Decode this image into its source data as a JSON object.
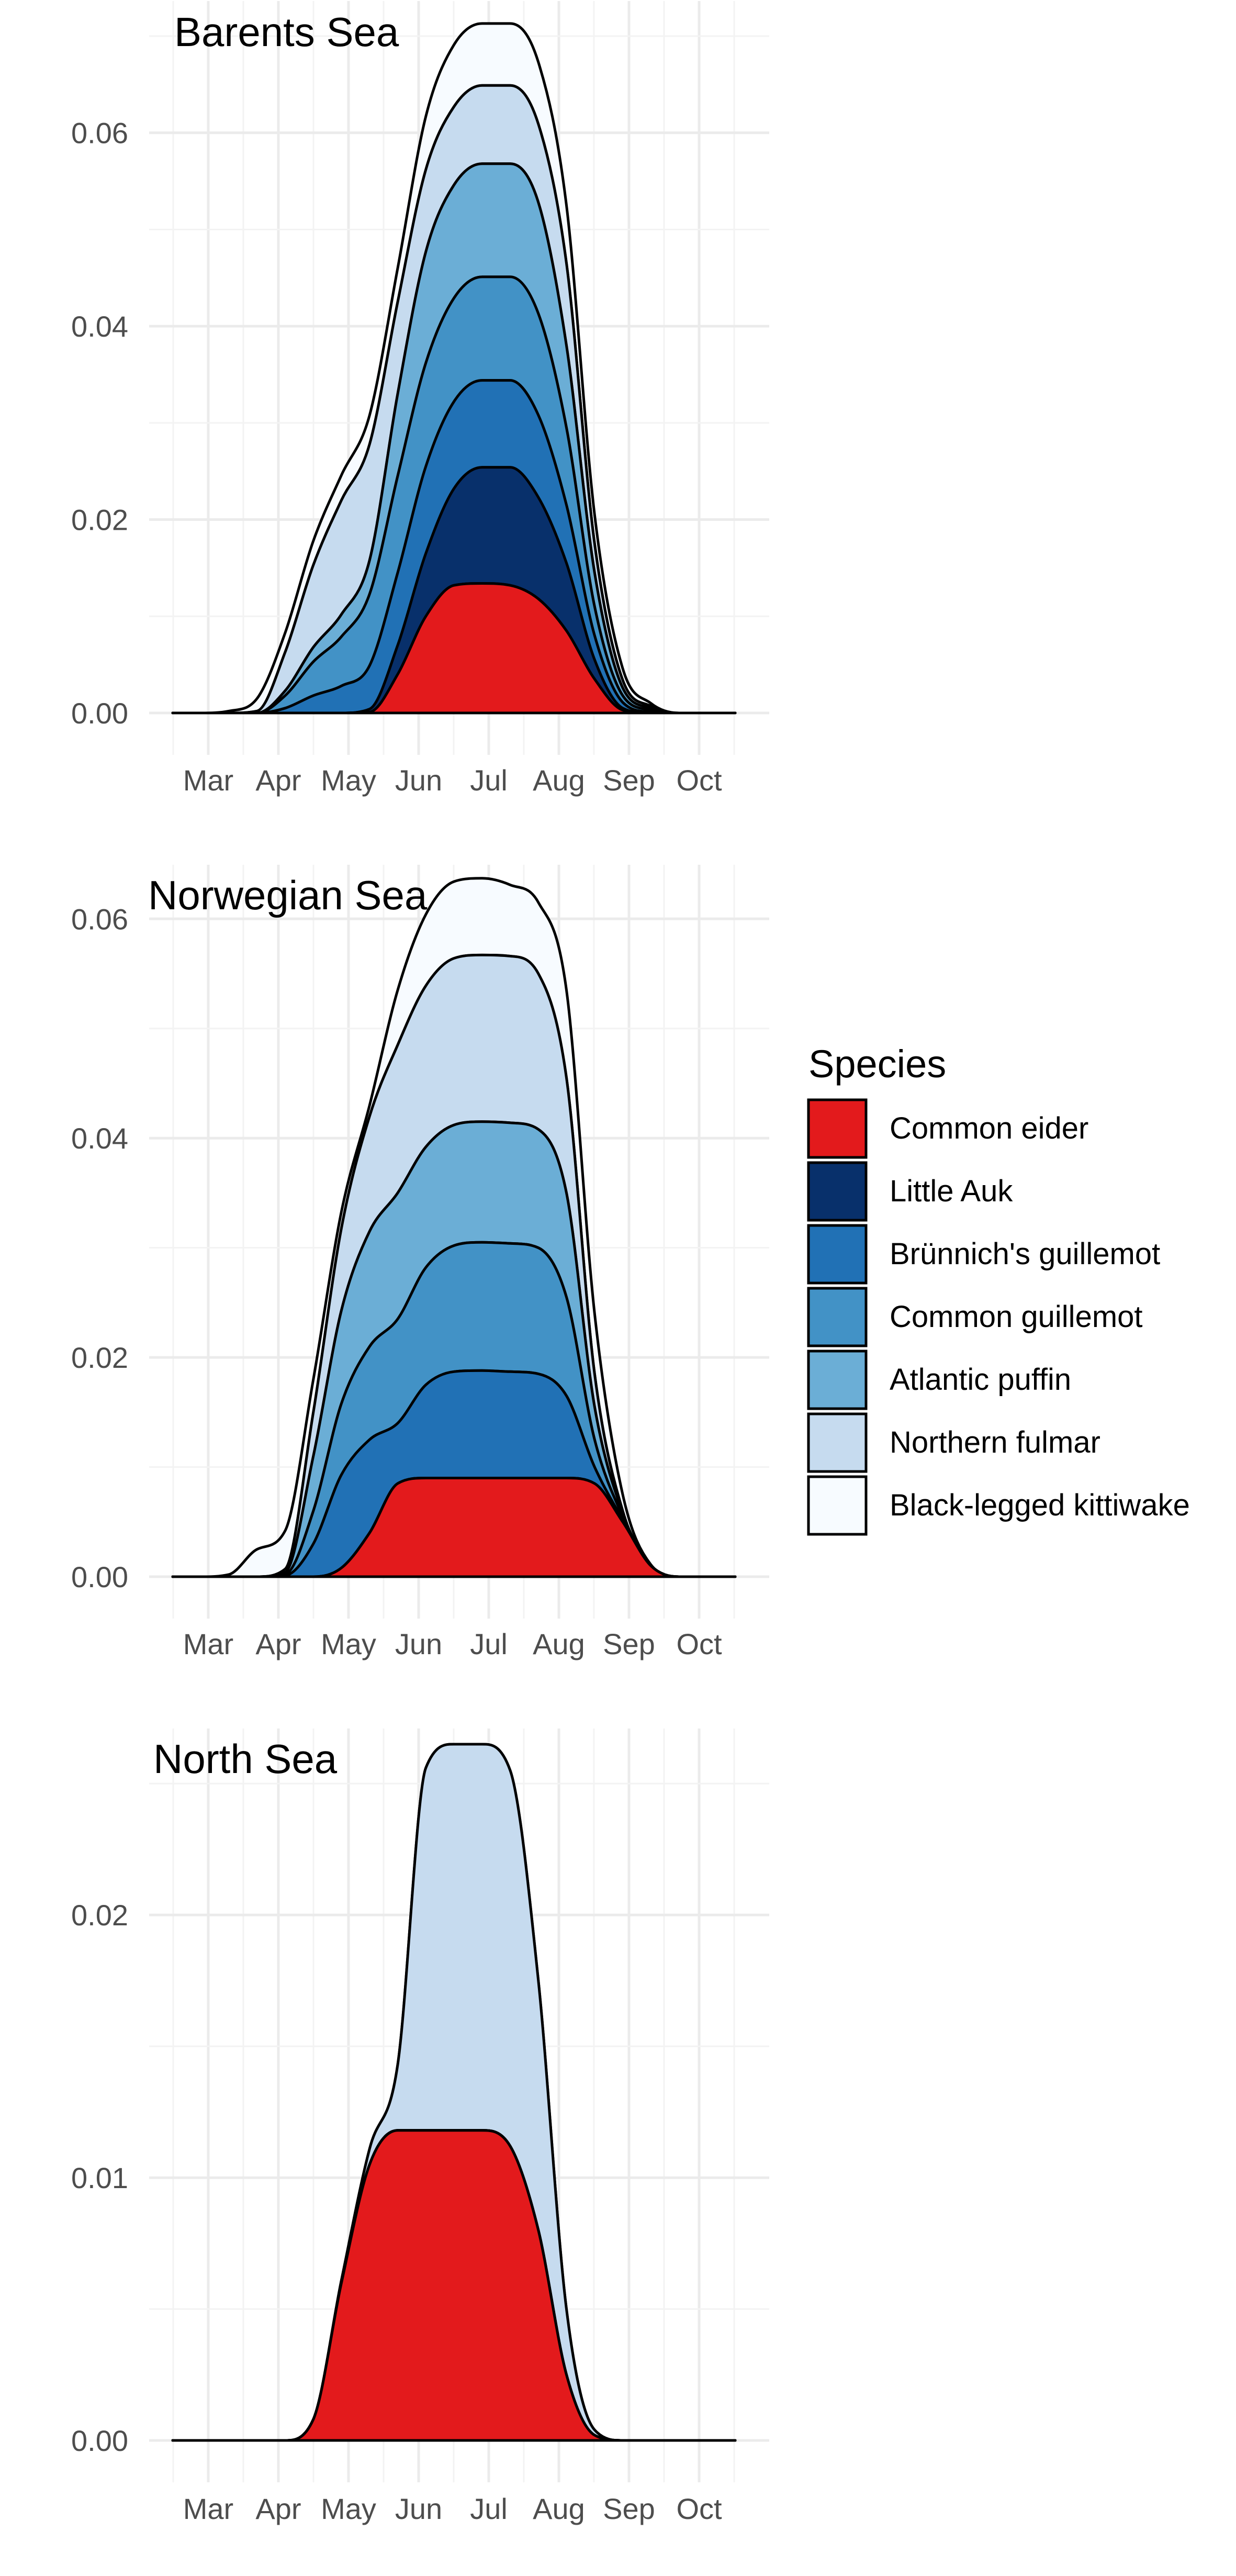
{
  "chart_data": [
    {
      "type": "area",
      "stacked": true,
      "title": "Barents Sea",
      "x_tick_labels": [
        "Mar",
        "Apr",
        "May",
        "Jun",
        "Jul",
        "Aug",
        "Sep",
        "Oct"
      ],
      "y_tick_labels": [
        "0.00",
        "0.02",
        "0.04",
        "0.06"
      ],
      "ylim": [
        0,
        0.072
      ],
      "series": [
        {
          "name": "Common eider",
          "color": "#e31a1c",
          "values": [
            0,
            0,
            0,
            0,
            0,
            0,
            0,
            0.0001,
            0.004,
            0.01,
            0.0132,
            0.0134,
            0.0132,
            0.0118,
            0.0085,
            0.0035,
            0.0003,
            0,
            0,
            0,
            0
          ]
        },
        {
          "name": "Little Auk",
          "color": "#08306b",
          "values": [
            0,
            0,
            0,
            0,
            0,
            0,
            0,
            0.0003,
            0.003,
            0.0065,
            0.01,
            0.012,
            0.0122,
            0.0105,
            0.007,
            0.002,
            0.0002,
            0,
            0,
            0,
            0
          ]
        },
        {
          "name": "Brünnich's guillemot",
          "color": "#2171b5",
          "values": [
            0,
            0,
            0,
            0,
            0.0005,
            0.0018,
            0.0028,
            0.0045,
            0.0075,
            0.009,
            0.009,
            0.009,
            0.009,
            0.0085,
            0.006,
            0.0025,
            0.0006,
            0.0001,
            0,
            0,
            0
          ]
        },
        {
          "name": "Common guillemot",
          "color": "#4292c6",
          "values": [
            0,
            0,
            0,
            0,
            0.0013,
            0.0035,
            0.0051,
            0.0074,
            0.01,
            0.0107,
            0.0107,
            0.0107,
            0.0107,
            0.0105,
            0.008,
            0.003,
            0.0007,
            0.0002,
            0,
            0,
            0
          ]
        },
        {
          "name": "Atlantic puffin",
          "color": "#6baed6",
          "values": [
            0,
            0,
            0,
            0,
            0.0005,
            0.0015,
            0.0023,
            0.0035,
            0.0085,
            0.0115,
            0.0117,
            0.0117,
            0.0117,
            0.0115,
            0.0085,
            0.0035,
            0.0008,
            0.0002,
            0,
            0,
            0
          ]
        },
        {
          "name": "Northern fulmar",
          "color": "#c6dbef",
          "values": [
            0,
            0,
            0,
            0.0002,
            0.004,
            0.0085,
            0.0118,
            0.012,
            0.0095,
            0.0085,
            0.0081,
            0.0081,
            0.0081,
            0.0081,
            0.0085,
            0.003,
            0.0008,
            0.0002,
            0,
            0,
            0
          ]
        },
        {
          "name": "Black-legged kittiwake",
          "color": "#f7fbff",
          "values": [
            0,
            0,
            0.0002,
            0.0013,
            0.002,
            0.0025,
            0.0026,
            0.003,
            0.0035,
            0.0055,
            0.0064,
            0.0064,
            0.0064,
            0.0064,
            0.006,
            0.003,
            0.0012,
            0.0003,
            0,
            0,
            0
          ]
        }
      ]
    },
    {
      "type": "area",
      "stacked": true,
      "title": "Norwegian Sea",
      "x_tick_labels": [
        "Mar",
        "Apr",
        "May",
        "Jun",
        "Jul",
        "Aug",
        "Sep",
        "Oct"
      ],
      "y_tick_labels": [
        "0.00",
        "0.02",
        "0.04",
        "0.06"
      ],
      "ylim": [
        0,
        0.0635
      ],
      "series": [
        {
          "name": "Common eider",
          "color": "#e31a1c",
          "values": [
            0,
            0,
            0,
            0,
            0,
            0,
            0.0008,
            0.004,
            0.0085,
            0.009,
            0.009,
            0.009,
            0.009,
            0.009,
            0.009,
            0.0085,
            0.005,
            0.001,
            0,
            0,
            0
          ]
        },
        {
          "name": "Little Auk",
          "color": "#08306b",
          "values": [
            0,
            0,
            0,
            0,
            0,
            0,
            0,
            0,
            0,
            0,
            0,
            0,
            0,
            0,
            0,
            0,
            0,
            0,
            0,
            0,
            0
          ]
        },
        {
          "name": "Brünnich's guillemot",
          "color": "#2171b5",
          "values": [
            0,
            0,
            0,
            0,
            0.0001,
            0.003,
            0.0085,
            0.0085,
            0.0055,
            0.0085,
            0.0097,
            0.0098,
            0.0097,
            0.0095,
            0.0075,
            0.0015,
            0.0002,
            0,
            0,
            0,
            0
          ]
        },
        {
          "name": "Common guillemot",
          "color": "#4292c6",
          "values": [
            0,
            0,
            0,
            0,
            0.0001,
            0.003,
            0.0065,
            0.0085,
            0.0095,
            0.0107,
            0.0115,
            0.0117,
            0.0117,
            0.0115,
            0.009,
            0.0025,
            0.0003,
            0,
            0,
            0,
            0
          ]
        },
        {
          "name": "Atlantic puffin",
          "color": "#6baed6",
          "values": [
            0,
            0,
            0,
            0,
            0.0002,
            0.005,
            0.0085,
            0.0105,
            0.0115,
            0.011,
            0.011,
            0.011,
            0.011,
            0.0108,
            0.0095,
            0.003,
            0.0003,
            0,
            0,
            0,
            0
          ]
        },
        {
          "name": "Northern fulmar",
          "color": "#c6dbef",
          "values": [
            0,
            0,
            0,
            0,
            0.0003,
            0.004,
            0.0075,
            0.0105,
            0.0135,
            0.0147,
            0.0152,
            0.0152,
            0.0152,
            0.0142,
            0.0105,
            0.003,
            0.0002,
            0,
            0,
            0,
            0
          ]
        },
        {
          "name": "Black-legged kittiwake",
          "color": "#f7fbff",
          "values": [
            0,
            0,
            0.0002,
            0.0025,
            0.0035,
            0.003,
            0.0015,
            0.001,
            0.005,
            0.0065,
            0.007,
            0.007,
            0.0065,
            0.0065,
            0.008,
            0.0055,
            0.0015,
            0.0001,
            0,
            0,
            0
          ]
        }
      ]
    },
    {
      "type": "area",
      "stacked": true,
      "title": "North Sea",
      "x_tick_labels": [
        "Mar",
        "Apr",
        "May",
        "Jun",
        "Jul",
        "Aug",
        "Sep",
        "Oct"
      ],
      "y_tick_labels": [
        "0.00",
        "0.01",
        "0.02"
      ],
      "ylim": [
        0,
        0.0265
      ],
      "series": [
        {
          "name": "Common eider",
          "color": "#e31a1c",
          "values": [
            0,
            0,
            0,
            0,
            0,
            0.0008,
            0.006,
            0.0105,
            0.0118,
            0.0118,
            0.0118,
            0.0118,
            0.0112,
            0.008,
            0.0025,
            0.0002,
            0,
            0,
            0,
            0,
            0
          ]
        },
        {
          "name": "Little Auk",
          "color": "#08306b",
          "values": [
            0,
            0,
            0,
            0,
            0,
            0,
            0,
            0,
            0,
            0,
            0,
            0,
            0,
            0,
            0,
            0,
            0,
            0,
            0,
            0,
            0
          ]
        },
        {
          "name": "Brünnich's guillemot",
          "color": "#2171b5",
          "values": [
            0,
            0,
            0,
            0,
            0,
            0,
            0,
            0,
            0,
            0,
            0,
            0,
            0,
            0,
            0,
            0,
            0,
            0,
            0,
            0,
            0
          ]
        },
        {
          "name": "Common guillemot",
          "color": "#4292c6",
          "values": [
            0,
            0,
            0,
            0,
            0,
            0,
            0,
            0,
            0,
            0,
            0,
            0,
            0,
            0,
            0,
            0,
            0,
            0,
            0,
            0,
            0
          ]
        },
        {
          "name": "Atlantic puffin",
          "color": "#6baed6",
          "values": [
            0,
            0,
            0,
            0,
            0,
            0,
            0,
            0,
            0,
            0,
            0,
            0,
            0,
            0,
            0,
            0,
            0,
            0,
            0,
            0,
            0
          ]
        },
        {
          "name": "Northern fulmar",
          "color": "#c6dbef",
          "values": [
            0,
            0,
            0,
            0,
            0,
            0,
            0.0001,
            0.0006,
            0.0025,
            0.0138,
            0.0147,
            0.0147,
            0.0143,
            0.0095,
            0.0025,
            0.0002,
            0,
            0,
            0,
            0,
            0
          ]
        },
        {
          "name": "Black-legged kittiwake",
          "color": "#f7fbff",
          "values": [
            0,
            0,
            0,
            0,
            0,
            0,
            0,
            0,
            0,
            0,
            0,
            0,
            0,
            0,
            0,
            0,
            0,
            0,
            0,
            0,
            0
          ]
        }
      ]
    }
  ],
  "legend": {
    "title": "Species",
    "items": [
      {
        "label": "Common eider",
        "color": "#e31a1c"
      },
      {
        "label": "Little Auk",
        "color": "#08306b"
      },
      {
        "label": "Brünnich's guillemot",
        "color": "#2171b5"
      },
      {
        "label": "Common guillemot",
        "color": "#4292c6"
      },
      {
        "label": "Atlantic puffin",
        "color": "#6baed6"
      },
      {
        "label": "Northern fulmar",
        "color": "#c6dbef"
      },
      {
        "label": "Black-legged kittiwake",
        "color": "#f7fbff"
      }
    ]
  }
}
